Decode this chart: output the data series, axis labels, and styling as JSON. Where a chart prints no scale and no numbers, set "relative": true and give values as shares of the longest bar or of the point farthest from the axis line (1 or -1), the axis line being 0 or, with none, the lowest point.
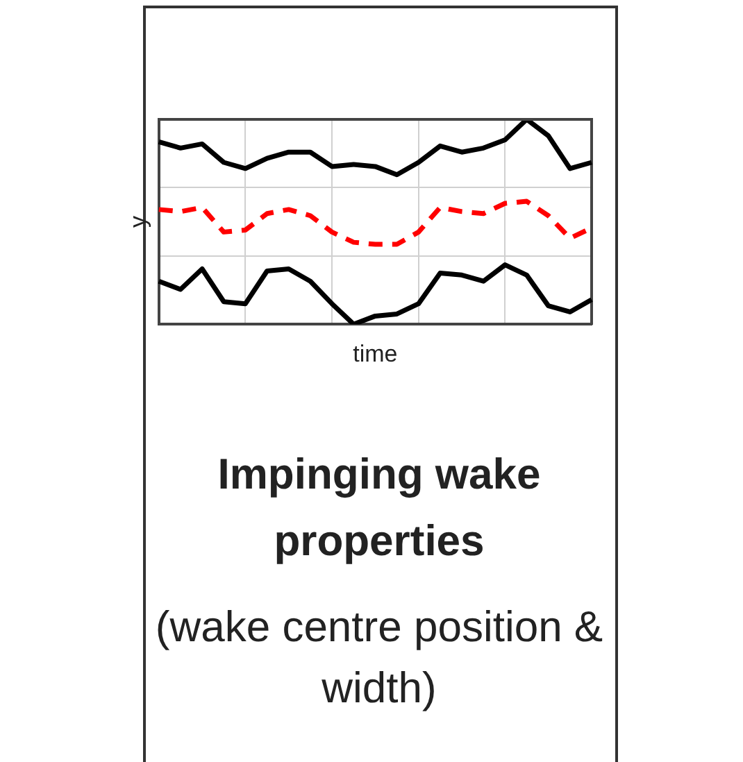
{
  "chart_data": {
    "type": "line",
    "title": "Impinging wake properties",
    "xlabel": "time",
    "ylabel": "y",
    "relative": true,
    "grid": true,
    "marker": "none",
    "annotations": [
      "(wake centre position & width)"
    ],
    "categories": [
      null,
      null,
      null,
      null,
      null,
      null,
      null,
      null,
      null,
      null,
      null,
      null,
      null,
      null,
      null,
      null,
      null,
      null,
      null,
      null,
      null
    ],
    "series": [
      {
        "color": "#000000",
        "line_style": "solid",
        "values": [
          0.89,
          0.86,
          0.88,
          0.79,
          0.76,
          0.81,
          0.84,
          0.84,
          0.77,
          0.78,
          0.77,
          0.73,
          0.79,
          0.87,
          0.84,
          0.86,
          0.9,
          1.0,
          0.92,
          0.76,
          0.79
        ]
      },
      {
        "color": "#ff0000",
        "line_style": "dashed",
        "values": [
          0.56,
          0.55,
          0.57,
          0.45,
          0.46,
          0.54,
          0.56,
          0.53,
          0.45,
          0.4,
          0.39,
          0.39,
          0.45,
          0.57,
          0.55,
          0.54,
          0.59,
          0.6,
          0.53,
          0.42,
          0.47
        ]
      },
      {
        "color": "#000000",
        "line_style": "solid",
        "values": [
          0.21,
          0.17,
          0.27,
          0.11,
          0.1,
          0.26,
          0.27,
          0.21,
          0.1,
          0,
          0.04,
          0.05,
          0.1,
          0.25,
          0.24,
          0.21,
          0.29,
          0.24,
          0.09,
          0.06,
          0.12
        ]
      }
    ]
  }
}
